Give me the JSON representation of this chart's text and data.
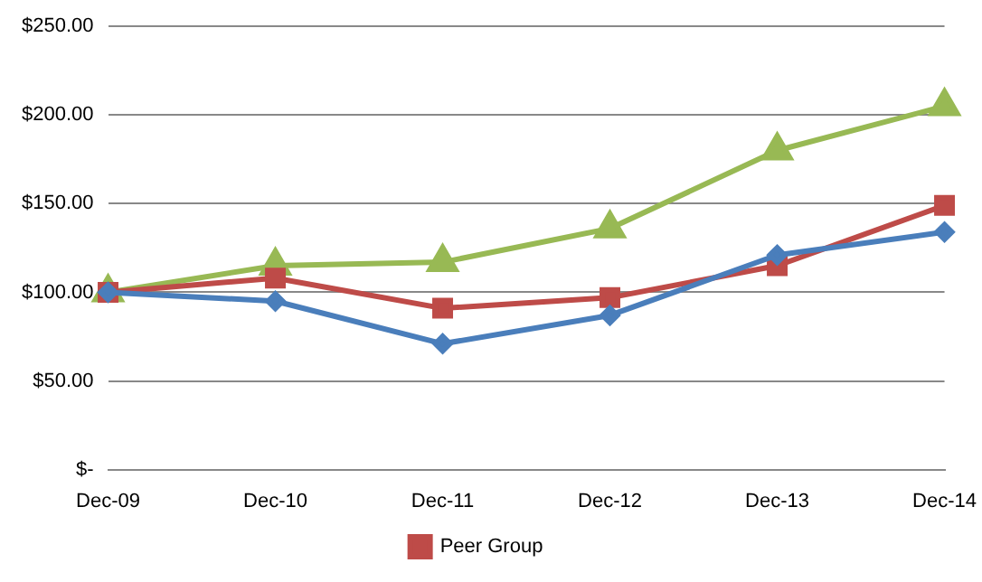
{
  "chart_data": {
    "type": "line",
    "categories": [
      "Dec-09",
      "Dec-10",
      "Dec-11",
      "Dec-12",
      "Dec-13",
      "Dec-14"
    ],
    "series": [
      {
        "color": "#4a7ebb",
        "marker": "diamond",
        "values": [
          100,
          95,
          71,
          87,
          121,
          134
        ]
      },
      {
        "name": "Peer Group",
        "color": "#be4b48",
        "marker": "square",
        "values": [
          100,
          108,
          91,
          97,
          115,
          149
        ]
      },
      {
        "color": "#98b954",
        "marker": "triangle",
        "values": [
          100,
          115,
          117,
          136,
          180,
          205
        ]
      }
    ],
    "ylim": [
      0,
      250
    ],
    "yticks": [
      {
        "value": 0,
        "label": "$-"
      },
      {
        "value": 50,
        "label": "$50.00"
      },
      {
        "value": 100,
        "label": "$100.00"
      },
      {
        "value": 150,
        "label": "$150.00"
      },
      {
        "value": 200,
        "label": "$200.00"
      },
      {
        "value": 250,
        "label": "$250.00"
      }
    ],
    "grid": "y",
    "legend": "bottom",
    "line_style": "solid"
  }
}
